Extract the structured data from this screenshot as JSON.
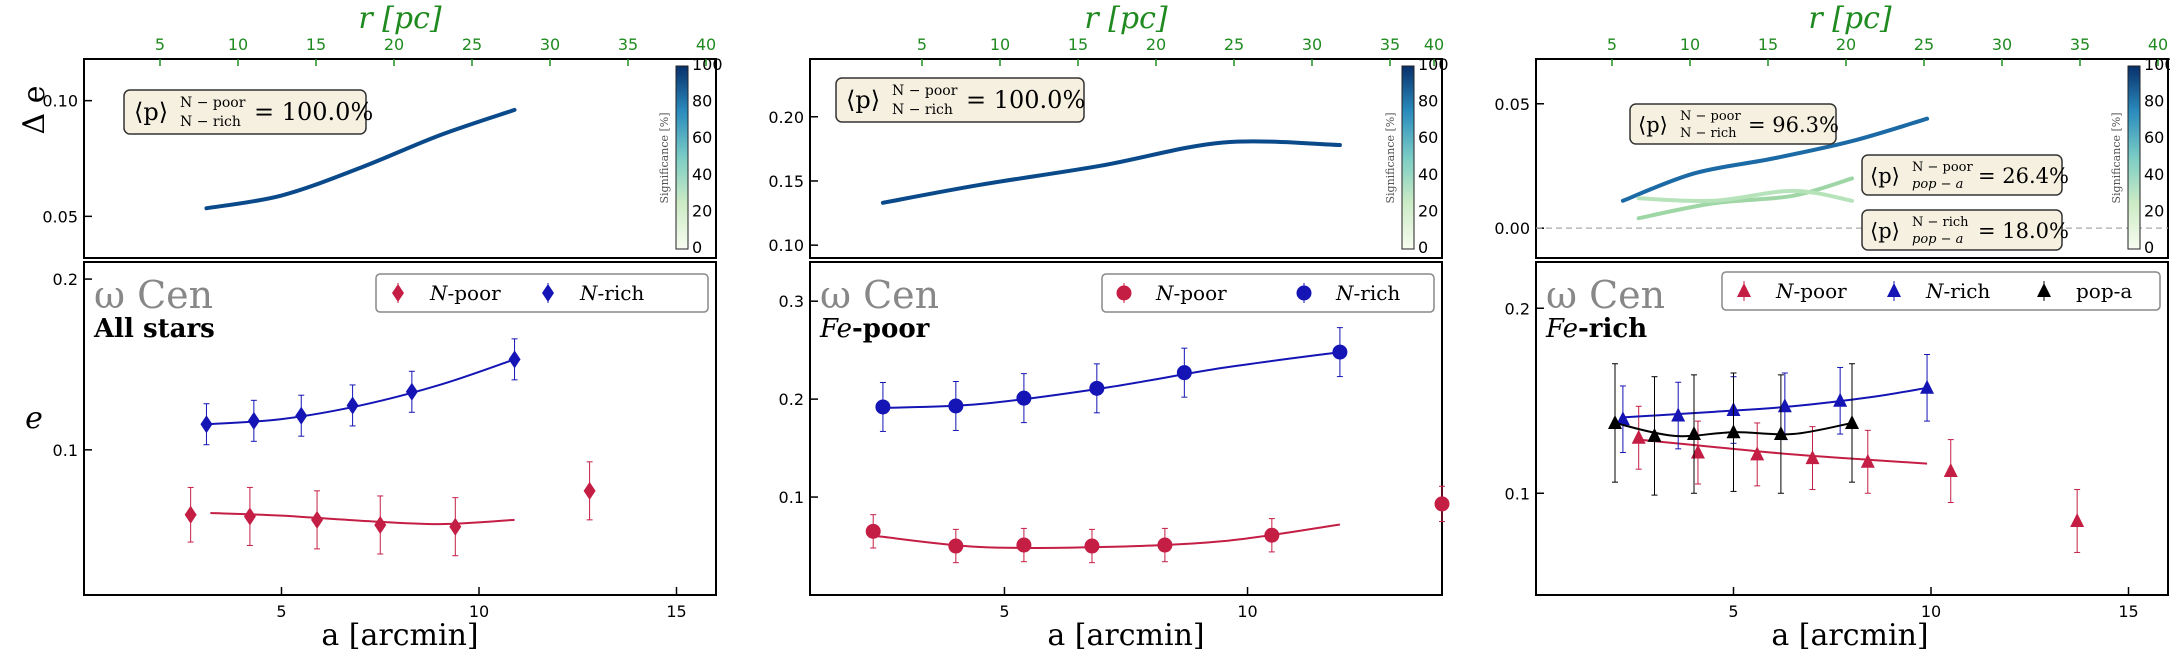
{
  "chart_data": [
    {
      "type": "scatter",
      "label_main": "ω Cen",
      "label_sub_bold": "All stars",
      "xlabel": "a [arcmin]",
      "top_axis_label": "r [pc]",
      "top_ticks": [
        "5",
        "10",
        "15",
        "20",
        "25",
        "30",
        "35",
        "40"
      ],
      "xlim": [
        0,
        16
      ],
      "xticks": [
        5,
        10,
        15
      ],
      "ylabel": "e",
      "ylim": [
        0.015,
        0.21
      ],
      "yticks": [
        0.1,
        0.2
      ],
      "marker": "diamond",
      "legend": [
        {
          "name": "N-poor",
          "italic": "N",
          "rest": "-poor",
          "color": "#c41e45"
        },
        {
          "name": "N-rich",
          "italic": "N",
          "rest": "-rich",
          "color": "#1515b5"
        }
      ],
      "series": [
        {
          "name": "N-poor",
          "color": "#c41e45",
          "x": [
            2.7,
            4.2,
            5.9,
            7.5,
            9.4,
            12.8
          ],
          "y": [
            0.062,
            0.061,
            0.059,
            0.056,
            0.055,
            0.076
          ],
          "err": [
            0.016,
            0.017,
            0.017,
            0.017,
            0.017,
            0.017
          ],
          "fit_x": [
            3.2,
            5.0,
            7.0,
            9.0,
            10.9
          ],
          "fit_y": [
            0.063,
            0.0615,
            0.0585,
            0.0565,
            0.059
          ]
        },
        {
          "name": "N-rich",
          "color": "#1515b5",
          "x": [
            3.1,
            4.3,
            5.5,
            6.8,
            8.3,
            10.9
          ],
          "y": [
            0.115,
            0.117,
            0.12,
            0.126,
            0.134,
            0.153
          ],
          "err": [
            0.012,
            0.012,
            0.012,
            0.012,
            0.012,
            0.012
          ],
          "fit_x": [
            3.1,
            5.0,
            7.0,
            9.0,
            10.9
          ],
          "fit_y": [
            0.115,
            0.118,
            0.126,
            0.138,
            0.153
          ]
        }
      ],
      "delta": {
        "ylabel": "Δ e",
        "ylim": [
          0.032,
          0.118
        ],
        "yticks": [
          0.05,
          0.1
        ],
        "curve_x": [
          3.1,
          5.0,
          7.0,
          9.0,
          10.9
        ],
        "curve_y": [
          0.0535,
          0.059,
          0.071,
          0.085,
          0.096
        ],
        "curve_color": "#0b4a8a",
        "annotations": [
          {
            "top": "N − poor",
            "bottom": "N − rich",
            "value": "= 100.0%"
          }
        ]
      },
      "colorbar": {
        "label": "Significance [%]",
        "ticks": [
          "0",
          "20",
          "40",
          "60",
          "80",
          "100"
        ]
      }
    },
    {
      "type": "scatter",
      "label_main": "ω Cen",
      "label_sub_italic": "Fe",
      "label_sub_bold": "-poor",
      "xlabel": "a [arcmin]",
      "top_axis_label": "r [pc]",
      "top_ticks": [
        "5",
        "10",
        "15",
        "20",
        "25",
        "30",
        "35",
        "40"
      ],
      "xlim": [
        1,
        14
      ],
      "xticks": [
        5,
        10
      ],
      "ylabel": "",
      "ylim": [
        0.0,
        0.34
      ],
      "yticks": [
        0.1,
        0.2,
        0.3
      ],
      "marker": "circle",
      "legend": [
        {
          "name": "N-poor",
          "italic": "N",
          "rest": "-poor",
          "color": "#c41e45"
        },
        {
          "name": "N-rich",
          "italic": "N",
          "rest": "-rich",
          "color": "#1515b5"
        }
      ],
      "series": [
        {
          "name": "N-poor",
          "color": "#c41e45",
          "x": [
            2.3,
            4.0,
            5.4,
            6.8,
            8.3,
            10.5,
            14.0
          ],
          "y": [
            0.065,
            0.05,
            0.051,
            0.05,
            0.051,
            0.061,
            0.093
          ],
          "err": [
            0.017,
            0.017,
            0.017,
            0.017,
            0.017,
            0.017,
            0.018
          ],
          "fit_x": [
            2.4,
            4.5,
            7.0,
            9.5,
            11.9
          ],
          "fit_y": [
            0.06,
            0.049,
            0.049,
            0.055,
            0.072
          ]
        },
        {
          "name": "N-rich",
          "color": "#1515b5",
          "x": [
            2.5,
            4.0,
            5.4,
            6.9,
            8.7,
            11.9
          ],
          "y": [
            0.192,
            0.193,
            0.201,
            0.211,
            0.227,
            0.248
          ],
          "err": [
            0.025,
            0.025,
            0.025,
            0.025,
            0.025,
            0.025
          ],
          "fit_x": [
            2.5,
            4.5,
            7.0,
            9.5,
            11.9
          ],
          "fit_y": [
            0.191,
            0.195,
            0.211,
            0.232,
            0.248
          ]
        }
      ],
      "delta": {
        "ylabel": "",
        "ylim": [
          0.09,
          0.245
        ],
        "yticks": [
          0.1,
          0.15,
          0.2
        ],
        "curve_x": [
          2.5,
          4.5,
          7.0,
          9.5,
          11.9
        ],
        "curve_y": [
          0.133,
          0.147,
          0.162,
          0.18,
          0.178
        ],
        "curve_color": "#0b4a8a",
        "annotations": [
          {
            "top": "N − poor",
            "bottom": "N − rich",
            "value": "= 100.0%"
          }
        ]
      },
      "colorbar": {
        "label": "Significance [%]",
        "ticks": [
          "0",
          "20",
          "40",
          "60",
          "80",
          "100"
        ]
      }
    },
    {
      "type": "scatter",
      "label_main": "ω Cen",
      "label_sub_italic": "Fe",
      "label_sub_bold": "-rich",
      "xlabel": "a [arcmin]",
      "top_axis_label": "r [pc]",
      "top_ticks": [
        "5",
        "10",
        "15",
        "20",
        "25",
        "30",
        "35",
        "40"
      ],
      "xlim": [
        0,
        16
      ],
      "xticks": [
        5,
        10,
        15
      ],
      "ylabel": "",
      "ylim": [
        0.045,
        0.225
      ],
      "yticks": [
        0.1,
        0.2
      ],
      "marker": "triangle",
      "legend": [
        {
          "name": "N-poor",
          "italic": "N",
          "rest": "-poor",
          "color": "#c41e45"
        },
        {
          "name": "N-rich",
          "italic": "N",
          "rest": "-rich",
          "color": "#1515b5"
        },
        {
          "name": "pop-a",
          "italic": "",
          "rest": "pop-a",
          "color": "#000000"
        }
      ],
      "series": [
        {
          "name": "N-poor",
          "color": "#c41e45",
          "x": [
            2.6,
            4.1,
            5.6,
            7.0,
            8.4,
            10.5,
            13.7
          ],
          "y": [
            0.13,
            0.122,
            0.121,
            0.119,
            0.117,
            0.112,
            0.085
          ],
          "err": [
            0.017,
            0.017,
            0.017,
            0.017,
            0.017,
            0.017,
            0.017
          ],
          "fit_x": [
            2.6,
            4.5,
            6.5,
            8.5,
            9.9
          ],
          "fit_y": [
            0.129,
            0.125,
            0.121,
            0.118,
            0.116
          ]
        },
        {
          "name": "N-rich",
          "color": "#1515b5",
          "x": [
            2.2,
            3.6,
            5.0,
            6.3,
            7.7,
            9.9
          ],
          "y": [
            0.14,
            0.142,
            0.145,
            0.147,
            0.15,
            0.157
          ],
          "err": [
            0.018,
            0.018,
            0.018,
            0.018,
            0.018,
            0.018
          ],
          "fit_x": [
            2.2,
            4.5,
            6.5,
            8.5,
            9.9
          ],
          "fit_y": [
            0.141,
            0.144,
            0.147,
            0.152,
            0.157
          ]
        },
        {
          "name": "pop-a",
          "color": "#000000",
          "x": [
            2.0,
            3.0,
            4.0,
            5.0,
            6.2,
            8.0
          ],
          "y": [
            0.138,
            0.131,
            0.132,
            0.133,
            0.132,
            0.138
          ],
          "err": [
            0.032,
            0.032,
            0.032,
            0.032,
            0.032,
            0.032
          ],
          "fit_x": [
            2.0,
            3.5,
            5.0,
            6.5,
            8.0
          ],
          "fit_y": [
            0.138,
            0.131,
            0.133,
            0.132,
            0.138
          ]
        }
      ],
      "delta": {
        "ylabel": "",
        "ylim": [
          -0.012,
          0.068
        ],
        "yticks": [
          0.0,
          0.05
        ],
        "zero_line": true,
        "curves": [
          {
            "x": [
              2.2,
              4.0,
              6.0,
              8.0,
              9.9
            ],
            "y": [
              0.011,
              0.022,
              0.028,
              0.035,
              0.044
            ],
            "color": "#1c6aa5"
          },
          {
            "x": [
              2.6,
              4.5,
              6.5,
              8.0
            ],
            "y": [
              0.004,
              0.01,
              0.013,
              0.02
            ],
            "color": "#9fd6a6"
          },
          {
            "x": [
              2.6,
              4.5,
              6.5,
              8.0
            ],
            "y": [
              0.012,
              0.011,
              0.015,
              0.011
            ],
            "color": "#b7e3bb"
          }
        ],
        "annotations": [
          {
            "top": "N − poor",
            "bottom": "N − rich",
            "value": "= 96.3%"
          },
          {
            "top": "N − poor",
            "bottom": "pop − a",
            "value": "= 26.4%"
          },
          {
            "top": "N − rich",
            "bottom": "pop − a",
            "value": "= 18.0%"
          }
        ]
      },
      "colorbar": {
        "label": "Significance [%]",
        "ticks": [
          "0",
          "20",
          "40",
          "60",
          "80",
          "100"
        ]
      }
    }
  ]
}
